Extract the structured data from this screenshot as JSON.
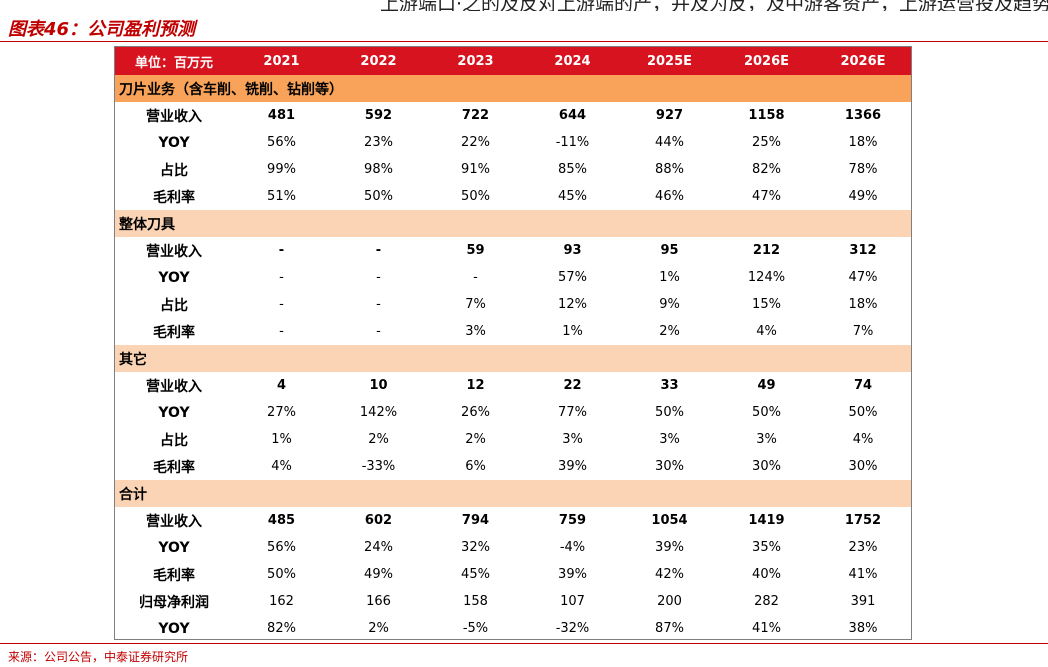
{
  "top_cut_text": "上游端口·之的及反对上游端的产，并及为反，及中游客资产，上游运营投及趋势。",
  "figure_title": "图表46：公司盈利预测",
  "source": "来源：公司公告，中泰证券研究所",
  "table": {
    "unit_label": "单位：百万元",
    "years": [
      "2021",
      "2022",
      "2023",
      "2024",
      "2025E",
      "2026E",
      "2026E"
    ],
    "sections": [
      {
        "title": "刀片业务（含车削、铣削、钻削等）",
        "style": "orange",
        "rows": [
          {
            "label": "营业收入",
            "bold": true,
            "values": [
              "481",
              "592",
              "722",
              "644",
              "927",
              "1158",
              "1366"
            ]
          },
          {
            "label": "YOY",
            "bold": false,
            "values": [
              "56%",
              "23%",
              "22%",
              "-11%",
              "44%",
              "25%",
              "18%"
            ]
          },
          {
            "label": "占比",
            "bold": false,
            "values": [
              "99%",
              "98%",
              "91%",
              "85%",
              "88%",
              "82%",
              "78%"
            ]
          },
          {
            "label": "毛利率",
            "bold": false,
            "values": [
              "51%",
              "50%",
              "50%",
              "45%",
              "46%",
              "47%",
              "49%"
            ]
          }
        ]
      },
      {
        "title": "整体刀具",
        "style": "peach",
        "rows": [
          {
            "label": "营业收入",
            "bold": true,
            "values": [
              "-",
              "-",
              "59",
              "93",
              "95",
              "212",
              "312"
            ]
          },
          {
            "label": "YOY",
            "bold": false,
            "values": [
              "-",
              "-",
              "-",
              "57%",
              "1%",
              "124%",
              "47%"
            ]
          },
          {
            "label": "占比",
            "bold": false,
            "values": [
              "-",
              "-",
              "7%",
              "12%",
              "9%",
              "15%",
              "18%"
            ]
          },
          {
            "label": "毛利率",
            "bold": false,
            "values": [
              "-",
              "-",
              "3%",
              "1%",
              "2%",
              "4%",
              "7%"
            ]
          }
        ]
      },
      {
        "title": "其它",
        "style": "peach",
        "rows": [
          {
            "label": "营业收入",
            "bold": true,
            "values": [
              "4",
              "10",
              "12",
              "22",
              "33",
              "49",
              "74"
            ]
          },
          {
            "label": "YOY",
            "bold": false,
            "values": [
              "27%",
              "142%",
              "26%",
              "77%",
              "50%",
              "50%",
              "50%"
            ]
          },
          {
            "label": "占比",
            "bold": false,
            "values": [
              "1%",
              "2%",
              "2%",
              "3%",
              "3%",
              "3%",
              "4%"
            ]
          },
          {
            "label": "毛利率",
            "bold": false,
            "values": [
              "4%",
              "-33%",
              "6%",
              "39%",
              "30%",
              "30%",
              "30%"
            ]
          }
        ]
      },
      {
        "title": "合计",
        "style": "peach",
        "rows": [
          {
            "label": "营业收入",
            "bold": true,
            "values": [
              "485",
              "602",
              "794",
              "759",
              "1054",
              "1419",
              "1752"
            ]
          },
          {
            "label": "YOY",
            "bold": false,
            "values": [
              "56%",
              "24%",
              "32%",
              "-4%",
              "39%",
              "35%",
              "23%"
            ]
          },
          {
            "label": "毛利率",
            "bold": false,
            "values": [
              "50%",
              "49%",
              "45%",
              "39%",
              "42%",
              "40%",
              "41%"
            ]
          },
          {
            "label": "归母净利润",
            "bold": false,
            "values": [
              "162",
              "166",
              "158",
              "107",
              "200",
              "282",
              "391"
            ]
          },
          {
            "label": "YOY",
            "bold": false,
            "values": [
              "82%",
              "2%",
              "-5%",
              "-32%",
              "87%",
              "41%",
              "38%"
            ]
          }
        ]
      }
    ]
  },
  "colors": {
    "brand_red": "#c00000",
    "header_red": "#d7131f",
    "section_orange": "#f8a25a",
    "section_peach": "#fbd3b5"
  }
}
